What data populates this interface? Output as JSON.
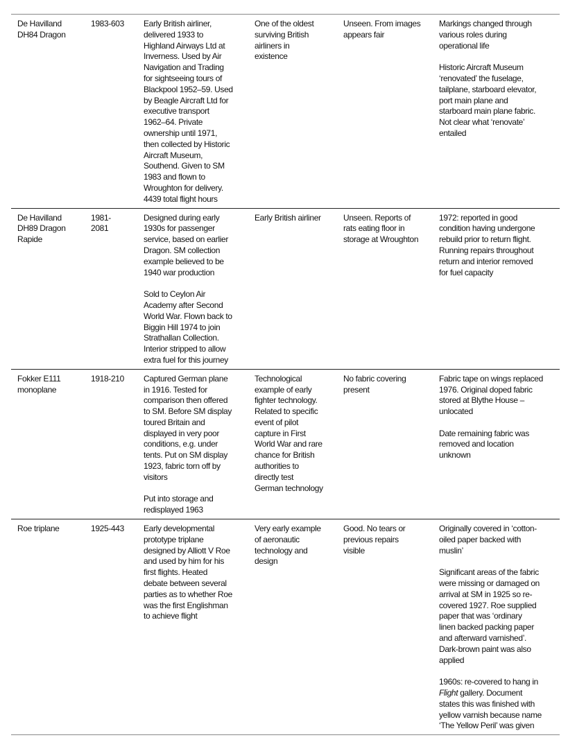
{
  "table": {
    "rows": [
      {
        "cells": [
          [
            "De Havilland\nDH84 Dragon"
          ],
          [
            "1983-603"
          ],
          [
            "Early British airliner,\ndelivered 1933 to\nHighland Airways Ltd at\nInverness. Used by Air\nNavigation and Trading\nfor sightseeing tours of\nBlackpool 1952–59. Used\nby Beagle Aircraft Ltd for\nexecutive transport\n1962–64. Private\nownership until 1971,\nthen collected by Historic\nAircraft Museum,\nSouthend. Given to SM\n1983 and flown to\nWroughton for delivery.\n4439 total flight hours"
          ],
          [
            "One of the oldest\nsurviving British\nairliners in\nexistence"
          ],
          [
            "Unseen. From images\nappears fair"
          ],
          [
            "Markings changed through\nvarious roles during\noperational life",
            "Historic Aircraft Museum\n‘renovated’ the fuselage,\ntailplane, starboard elevator,\nport main plane and\nstarboard main plane fabric.\nNot clear what ‘renovate’\nentailed"
          ]
        ]
      },
      {
        "cells": [
          [
            "De Havilland\nDH89 Dragon\nRapide"
          ],
          [
            "1981-\n2081"
          ],
          [
            "Designed during early\n1930s for passenger\nservice, based on earlier\nDragon. SM collection\nexample believed to be\n1940 war production",
            "Sold to Ceylon Air\nAcademy after Second\nWorld War. Flown back to\nBiggin Hill 1974 to join\nStrathallan Collection.\nInterior stripped to allow\nextra fuel for this journey"
          ],
          [
            "Early British airliner"
          ],
          [
            "Unseen. Reports of\nrats eating floor in\nstorage at Wroughton"
          ],
          [
            "1972: reported in good\ncondition having undergone\nrebuild prior to return flight.\nRunning repairs throughout\nreturn and interior removed\nfor fuel capacity"
          ]
        ]
      },
      {
        "cells": [
          [
            "Fokker E111\nmonoplane"
          ],
          [
            "1918-210"
          ],
          [
            "Captured German plane\nin 1916. Tested for\ncomparison then offered\nto SM. Before SM display\ntoured Britain and\ndisplayed in very poor\nconditions, e.g. under\ntents. Put on SM display\n1923, fabric torn off by\nvisitors",
            "Put into storage and\nredisplayed 1963"
          ],
          [
            "Technological\nexample of early\nfighter technology.\nRelated to specific\nevent of pilot\ncapture in First\nWorld War and rare\nchance for British\nauthorities to\ndirectly test\nGerman technology"
          ],
          [
            "No fabric covering\npresent"
          ],
          [
            "Fabric tape on wings replaced\n1976. Original doped fabric\nstored at Blythe House –\nunlocated",
            "Date remaining fabric was\nremoved and location\nunknown"
          ]
        ]
      },
      {
        "cells": [
          [
            "Roe triplane"
          ],
          [
            "1925-443"
          ],
          [
            "Early developmental\nprototype triplane\ndesigned by Alliott V Roe\nand used by him for his\nfirst flights. Heated\ndebate between several\nparties as to whether Roe\nwas the first Englishman\nto achieve flight"
          ],
          [
            "Very early example\nof aeronautic\ntechnology and\ndesign"
          ],
          [
            "Good. No tears or\nprevious repairs\nvisible"
          ],
          [
            "Originally covered in ‘cotton-\noiled paper backed with\nmuslin’",
            "Significant areas of the fabric\nwere missing or damaged on\narrival at SM in 1925 so re-\ncovered 1927. Roe supplied\npaper that was ‘ordinary\nlinen backed packing paper\nand afterward varnished’.\nDark-brown paint was also\napplied",
            [
              {
                "text": "1960s: re-covered to hang in\n"
              },
              {
                "text": "Flight",
                "italic": true
              },
              {
                "text": " gallery. Document\nstates this was finished with\nyellow varnish because name\n‘The Yellow Peril’ was given"
              }
            ]
          ]
        ]
      }
    ]
  }
}
